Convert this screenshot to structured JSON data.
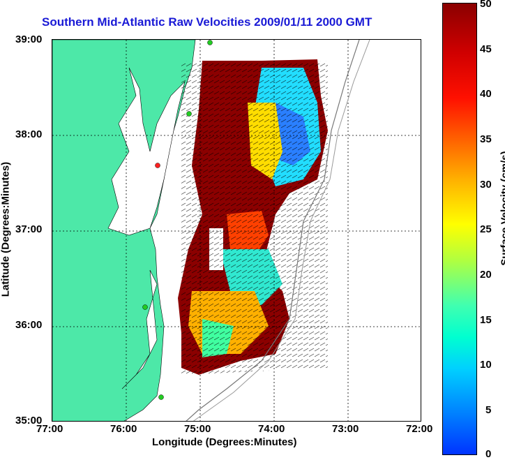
{
  "title": "Southern Mid-Atlantic Raw Velocities 2009/01/11 2000 GMT",
  "axes": {
    "xlabel": "Longitude (Degrees:Minutes)",
    "ylabel": "Latitude (Degrees:Minutes)",
    "x_ticks": [
      "77:00",
      "76:00",
      "75:00",
      "74:00",
      "73:00",
      "72:00"
    ],
    "y_ticks": [
      "39:00",
      "38:00",
      "37:00",
      "36:00",
      "35:00"
    ],
    "x_range": [
      -77,
      -72
    ],
    "y_range": [
      35,
      39
    ],
    "grid": "dotted"
  },
  "colorbar": {
    "label": "Surface Velocity (cm/s)",
    "ticks": [
      "50",
      "45",
      "40",
      "35",
      "30",
      "25",
      "20",
      "15",
      "10",
      "5",
      "0"
    ],
    "range": [
      0,
      50
    ],
    "colormap": "jet"
  },
  "colors": {
    "land": "#4de8a8",
    "title": "#1a1ad6",
    "station": "#22cc22"
  }
}
